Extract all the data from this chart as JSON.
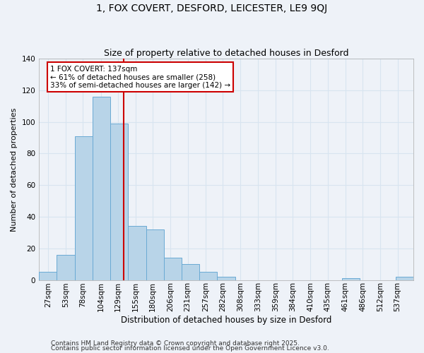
{
  "title": "1, FOX COVERT, DESFORD, LEICESTER, LE9 9QJ",
  "subtitle": "Size of property relative to detached houses in Desford",
  "xlabel": "Distribution of detached houses by size in Desford",
  "ylabel": "Number of detached properties",
  "bar_labels": [
    "27sqm",
    "53sqm",
    "78sqm",
    "104sqm",
    "129sqm",
    "155sqm",
    "180sqm",
    "206sqm",
    "231sqm",
    "257sqm",
    "282sqm",
    "308sqm",
    "333sqm",
    "359sqm",
    "384sqm",
    "410sqm",
    "435sqm",
    "461sqm",
    "486sqm",
    "512sqm",
    "537sqm"
  ],
  "bar_values": [
    5,
    16,
    91,
    116,
    99,
    34,
    32,
    14,
    10,
    5,
    2,
    0,
    0,
    0,
    0,
    0,
    0,
    1,
    0,
    0,
    2
  ],
  "bar_color": "#b8d4e8",
  "bar_edge_color": "#6aaad4",
  "ylim": [
    0,
    140
  ],
  "yticks": [
    0,
    20,
    40,
    60,
    80,
    100,
    120,
    140
  ],
  "property_line_x": 137,
  "annotation_title": "1 FOX COVERT: 137sqm",
  "annotation_line1": "← 61% of detached houses are smaller (258)",
  "annotation_line2": "33% of semi-detached houses are larger (142) →",
  "annotation_box_color": "#ffffff",
  "annotation_box_edge": "#cc0000",
  "red_line_color": "#cc0000",
  "footer1": "Contains HM Land Registry data © Crown copyright and database right 2025.",
  "footer2": "Contains public sector information licensed under the Open Government Licence v3.0.",
  "background_color": "#eef2f8",
  "grid_color": "#d8e4f0",
  "title_fontsize": 10,
  "subtitle_fontsize": 9,
  "xlabel_fontsize": 8.5,
  "ylabel_fontsize": 8,
  "tick_fontsize": 7.5,
  "annotation_fontsize": 7.5,
  "footer_fontsize": 6.5
}
